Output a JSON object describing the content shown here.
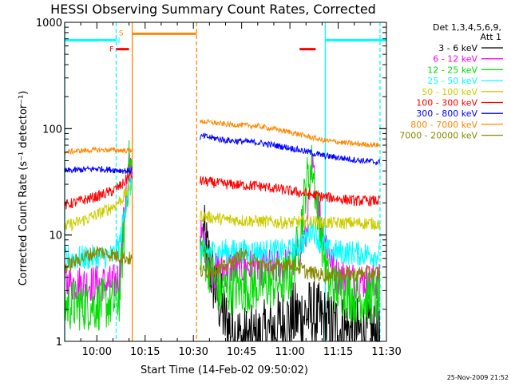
{
  "chart_data": {
    "type": "line",
    "title": "HESSI Observing Summary Count Rates, Corrected",
    "xlabel": "Start Time (14-Feb-02 09:50:02)",
    "ylabel": "Corrected Count Rate (s⁻¹ detector⁻¹)",
    "y_scale": "log",
    "ylim": [
      1,
      1000
    ],
    "xlim": [
      "09:50",
      "11:30"
    ],
    "x_ticks": [
      "10:00",
      "10:15",
      "10:30",
      "10:45",
      "11:00",
      "11:15",
      "11:30"
    ],
    "y_ticks": [
      "1",
      "10",
      "100",
      "1000"
    ],
    "legend_title": "Det 1,3,4,5,6,9,\nAtt 1",
    "legend_position": "right",
    "footer_date": "25-Nov-2009 21:52",
    "gaps": [
      [
        "10:11",
        "10:32"
      ]
    ],
    "series": [
      {
        "name": "3 - 6 keV",
        "color": "#000000",
        "x": [
          "10:33",
          "10:36",
          "10:40",
          "10:45",
          "10:50",
          "10:55",
          "11:00",
          "11:05",
          "11:08",
          "11:12",
          "11:20",
          "11:28"
        ],
        "values": [
          10.0,
          4.0,
          1.5,
          1.0,
          1.0,
          1.3,
          1.6,
          1.8,
          1.7,
          1.4,
          1.2,
          1.1
        ]
      },
      {
        "name": "6 - 12 keV",
        "color": "#ff00ff",
        "x": [
          "09:50",
          "10:00",
          "10:05",
          "10:07",
          "10:09",
          "10:10",
          "10:33",
          "10:36",
          "10:42",
          "10:50",
          "10:58",
          "11:02",
          "11:05",
          "11:07",
          "11:10",
          "11:14",
          "11:20",
          "11:28"
        ],
        "values": [
          3.5,
          3.5,
          3.5,
          4.0,
          25.0,
          45.0,
          9.0,
          4.5,
          5.0,
          5.0,
          5.0,
          6.0,
          10.0,
          42.0,
          12.0,
          4.2,
          3.8,
          3.6
        ]
      },
      {
        "name": "12 - 25 keV",
        "color": "#00dd00",
        "x": [
          "09:50",
          "10:00",
          "10:05",
          "10:07",
          "10:08",
          "10:10",
          "10:33",
          "10:38",
          "10:45",
          "10:55",
          "11:00",
          "11:03",
          "11:05",
          "11:07",
          "11:09",
          "11:12",
          "11:20",
          "11:28"
        ],
        "values": [
          2.2,
          2.2,
          2.3,
          2.6,
          7.0,
          45.0,
          7.0,
          3.0,
          3.2,
          3.5,
          4.0,
          9.0,
          30.0,
          45.0,
          14.0,
          3.5,
          2.6,
          2.5
        ]
      },
      {
        "name": "25 - 50 keV",
        "color": "#00ffff",
        "x": [
          "09:50",
          "10:00",
          "10:05",
          "10:07",
          "10:09",
          "10:10",
          "10:33",
          "10:40",
          "10:50",
          "11:00",
          "11:05",
          "11:07",
          "11:09",
          "11:12",
          "11:20",
          "11:28"
        ],
        "values": [
          6.0,
          6.2,
          6.4,
          8.0,
          20.0,
          30.0,
          7.0,
          7.0,
          7.0,
          7.0,
          9.0,
          12.0,
          9.0,
          7.0,
          6.8,
          6.5
        ]
      },
      {
        "name": "50 - 100 keV",
        "color": "#cccc00",
        "x": [
          "09:50",
          "09:55",
          "10:00",
          "10:05",
          "10:08",
          "10:10",
          "10:33",
          "10:40",
          "10:50",
          "11:00",
          "11:05",
          "11:10",
          "11:20",
          "11:28"
        ],
        "values": [
          12.0,
          13.5,
          15.5,
          18.5,
          22.0,
          28.0,
          15.0,
          14.0,
          13.5,
          13.0,
          13.5,
          13.0,
          13.0,
          12.8
        ]
      },
      {
        "name": "100 - 300 keV",
        "color": "#ff0000",
        "x": [
          "09:50",
          "09:55",
          "10:00",
          "10:05",
          "10:08",
          "10:10",
          "10:33",
          "10:40",
          "10:50",
          "11:00",
          "11:10",
          "11:20",
          "11:28"
        ],
        "values": [
          19.0,
          21.0,
          23.0,
          26.0,
          30.0,
          36.0,
          32.0,
          30.0,
          29.0,
          26.0,
          23.0,
          21.0,
          21.0
        ]
      },
      {
        "name": "300 - 800 keV",
        "color": "#0000ff",
        "x": [
          "09:50",
          "09:55",
          "10:00",
          "10:05",
          "10:10",
          "10:33",
          "10:40",
          "10:50",
          "11:00",
          "11:10",
          "11:20",
          "11:28"
        ],
        "values": [
          40.0,
          41.0,
          42.0,
          41.0,
          40.0,
          85.0,
          78.0,
          74.0,
          66.0,
          56.0,
          51.0,
          48.0
        ]
      },
      {
        "name": "800 - 7000 keV",
        "color": "#ff8800",
        "x": [
          "09:50",
          "09:55",
          "10:00",
          "10:05",
          "10:10",
          "10:33",
          "10:40",
          "10:50",
          "11:00",
          "11:10",
          "11:20",
          "11:28"
        ],
        "values": [
          60.0,
          62.0,
          63.0,
          63.0,
          62.0,
          117.0,
          110.0,
          106.0,
          93.0,
          78.0,
          72.0,
          70.0
        ]
      },
      {
        "name": "7000 - 20000 keV",
        "color": "#888800",
        "x": [
          "09:50",
          "09:55",
          "10:00",
          "10:05",
          "10:10",
          "10:33",
          "10:40",
          "10:45",
          "10:50",
          "10:55",
          "11:00",
          "11:05",
          "11:10",
          "11:20",
          "11:28"
        ],
        "values": [
          5.0,
          6.0,
          7.0,
          6.5,
          6.0,
          4.5,
          5.0,
          6.5,
          5.5,
          5.0,
          5.5,
          4.5,
          4.2,
          4.3,
          4.4
        ]
      }
    ],
    "flag_bars": [
      {
        "color": "#00ffff",
        "y_level": 680,
        "intervals": [
          [
            "09:50",
            "10:06"
          ],
          [
            "11:11",
            "11:30"
          ]
        ]
      },
      {
        "color": "#ff8800",
        "y_level": 780,
        "intervals": [
          [
            "10:11",
            "10:31"
          ]
        ]
      },
      {
        "color": "#ff0000",
        "y_level": 560,
        "intervals": [
          [
            "10:06",
            "10:10"
          ],
          [
            "11:03",
            "11:08"
          ]
        ]
      }
    ],
    "flag_labels": [
      {
        "text": "F",
        "color": "#ff0000",
        "at": "10:06",
        "y_level": 560
      },
      {
        "text": "N",
        "color": "#00ffff",
        "at": "10:08",
        "y_level": 680
      },
      {
        "text": "S",
        "color": "#ff8800",
        "at": "10:09",
        "y_level": 790
      }
    ],
    "vertical_markers": [
      {
        "at": "09:50",
        "color": "#00ffff",
        "dash": false
      },
      {
        "at": "10:06",
        "color": "#00ffff",
        "dash": true
      },
      {
        "at": "10:11",
        "color": "#ff8800",
        "dash": false
      },
      {
        "at": "10:31",
        "color": "#ff8800",
        "dash": true
      },
      {
        "at": "11:11",
        "color": "#00ffff",
        "dash": false
      },
      {
        "at": "11:28",
        "color": "#00ffff",
        "dash": true
      }
    ]
  }
}
